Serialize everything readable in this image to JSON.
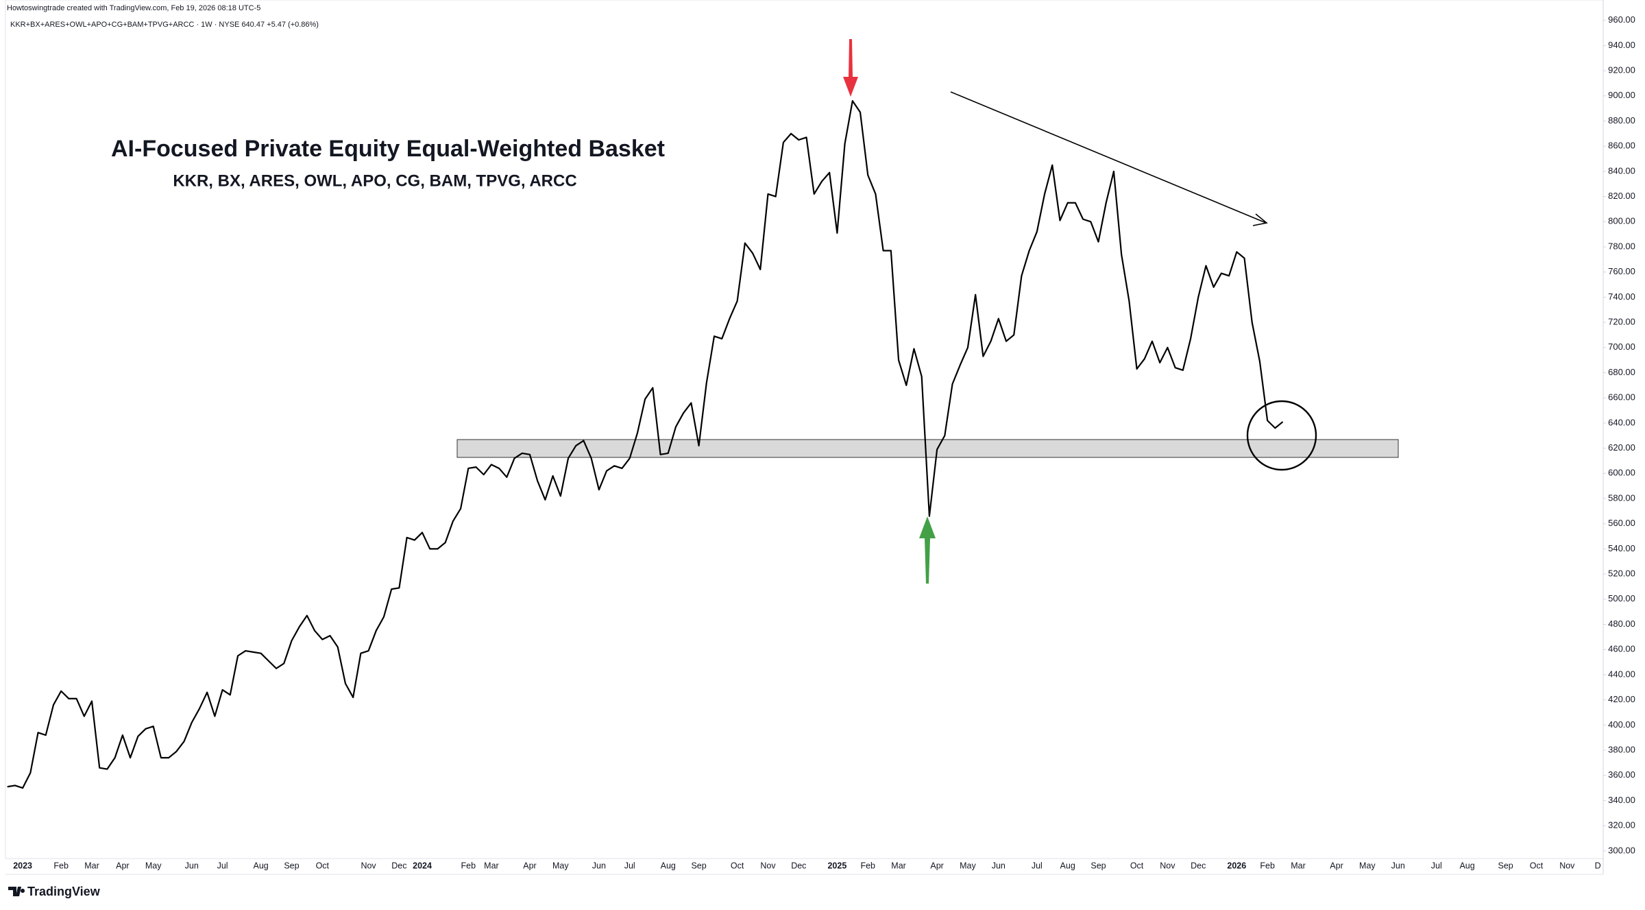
{
  "chart_data": {
    "type": "line",
    "title": "AI-Focused Private Equity Equal-Weighted Basket",
    "subtitle": "KKR, BX, ARES, OWL, APO, CG, BAM, TPVG, ARCC",
    "attribution": "Howtoswingtrade created with TradingView.com, Feb 19, 2026 08:18 UTC-5",
    "symbol_line": "KKR+BX+ARES+OWL+APO+CG+BAM+TPVG+ARCC · 1W · NYSE  640.47  +5.47 (+0.86%)",
    "logo_text": "TradingView",
    "color": "#000000",
    "grid": false,
    "categories": [
      null,
      null,
      "2023",
      null,
      null,
      null,
      null,
      "Feb",
      null,
      null,
      null,
      "Mar",
      null,
      null,
      null,
      "Apr",
      null,
      null,
      null,
      "May",
      null,
      null,
      null,
      null,
      "Jun",
      null,
      null,
      null,
      "Jul",
      null,
      null,
      null,
      null,
      "Aug",
      null,
      null,
      null,
      "Sep",
      null,
      null,
      null,
      "Oct",
      null,
      null,
      null,
      null,
      null,
      "Nov",
      null,
      null,
      null,
      "Dec",
      null,
      null,
      "2024",
      null,
      null,
      null,
      null,
      null,
      "Feb",
      null,
      null,
      "Mar",
      null,
      null,
      null,
      null,
      "Apr",
      null,
      null,
      null,
      "May",
      null,
      null,
      null,
      null,
      "Jun",
      null,
      null,
      null,
      "Jul",
      null,
      null,
      null,
      null,
      "Aug",
      null,
      null,
      null,
      "Sep",
      null,
      null,
      null,
      null,
      "Oct",
      null,
      null,
      null,
      "Nov",
      null,
      null,
      null,
      "Dec",
      null,
      null,
      null,
      null,
      "2025",
      null,
      null,
      null,
      "Feb",
      null,
      null,
      null,
      "Mar",
      null,
      null,
      null,
      null,
      "Apr",
      null,
      null,
      null,
      "May",
      null,
      null,
      null,
      "Jun",
      null,
      null,
      null,
      null,
      "Jul",
      null,
      null,
      null,
      "Aug",
      null,
      null,
      null,
      "Sep",
      null,
      null,
      null,
      null,
      "Oct",
      null,
      null,
      null,
      "Nov",
      null,
      null,
      null,
      "Dec",
      null,
      null,
      null,
      null,
      "2026",
      null,
      null,
      null,
      "Feb",
      null,
      null,
      null,
      "Mar",
      null,
      null,
      null,
      null,
      "Apr",
      null,
      null,
      null,
      "May",
      null,
      null,
      null,
      "Jun",
      null,
      null,
      null,
      null,
      "Jul",
      null,
      null,
      null,
      "Aug",
      null,
      null,
      null,
      null,
      "Sep",
      null,
      null,
      null,
      "Oct",
      null,
      null,
      null,
      "Nov",
      null,
      null,
      null,
      "D"
    ],
    "values": [
      351,
      352,
      350,
      362,
      394,
      392,
      416,
      427,
      421,
      421,
      407,
      419,
      366,
      365,
      374,
      392,
      374,
      391,
      397,
      399,
      374,
      374,
      379,
      387,
      402,
      413,
      426,
      407,
      428,
      424,
      455,
      459,
      458,
      457,
      451,
      445,
      449,
      467,
      478,
      487,
      475,
      468,
      471,
      462,
      433,
      422,
      457,
      459,
      475,
      486,
      508,
      509,
      549,
      547,
      553,
      540,
      540,
      545,
      562,
      572,
      604,
      605,
      599,
      607,
      604,
      597,
      612,
      616,
      615,
      594,
      579,
      598,
      582,
      612,
      622,
      626,
      612,
      587,
      602,
      606,
      604,
      612,
      632,
      659,
      668,
      615,
      616,
      637,
      648,
      656,
      622,
      672,
      709,
      707,
      723,
      737,
      783,
      775,
      762,
      822,
      820,
      863,
      870,
      865,
      867,
      822,
      832,
      839,
      791,
      862,
      896,
      887,
      837,
      822,
      777,
      777,
      690,
      670,
      699,
      677,
      566,
      619,
      630,
      671,
      686,
      700,
      742,
      693,
      705,
      723,
      705,
      710,
      757,
      777,
      792,
      822,
      845,
      801,
      815,
      815,
      802,
      800,
      784,
      815,
      840,
      774,
      737,
      683,
      691,
      705,
      688,
      700,
      684,
      682,
      707,
      740,
      765,
      748,
      759,
      757,
      776,
      771,
      720,
      689,
      642,
      636,
      641,
      null,
      null,
      null,
      null,
      null,
      null,
      null,
      null,
      null,
      null,
      null,
      null,
      null,
      null,
      null,
      null,
      null,
      null,
      null,
      null,
      null,
      null,
      null,
      null,
      null,
      null,
      null,
      null,
      null,
      null,
      null,
      null,
      null,
      null,
      null,
      null,
      null,
      null,
      null,
      null,
      null
    ],
    "ylim": [
      295,
      968
    ],
    "yticks": [
      {
        "value": 960,
        "label": "960.00"
      },
      {
        "value": 940,
        "label": "940.00"
      },
      {
        "value": 920,
        "label": "920.00"
      },
      {
        "value": 900,
        "label": "900.00"
      },
      {
        "value": 880,
        "label": "880.00"
      },
      {
        "value": 860,
        "label": "860.00"
      },
      {
        "value": 840,
        "label": "840.00"
      },
      {
        "value": 820,
        "label": "820.00"
      },
      {
        "value": 800,
        "label": "800.00"
      },
      {
        "value": 780,
        "label": "780.00"
      },
      {
        "value": 760,
        "label": "760.00"
      },
      {
        "value": 740,
        "label": "740.00"
      },
      {
        "value": 720,
        "label": "720.00"
      },
      {
        "value": 700,
        "label": "700.00"
      },
      {
        "value": 680,
        "label": "680.00"
      },
      {
        "value": 660,
        "label": "660.00"
      },
      {
        "value": 640,
        "label": "640.00"
      },
      {
        "value": 620,
        "label": "620.00"
      },
      {
        "value": 600,
        "label": "600.00"
      },
      {
        "value": 580,
        "label": "580.00"
      },
      {
        "value": 560,
        "label": "560.00"
      },
      {
        "value": 540,
        "label": "540.00"
      },
      {
        "value": 520,
        "label": "520.00"
      },
      {
        "value": 500,
        "label": "500.00"
      },
      {
        "value": 480,
        "label": "480.00"
      },
      {
        "value": 460,
        "label": "460.00"
      },
      {
        "value": 440,
        "label": "440.00"
      },
      {
        "value": 420,
        "label": "420.00"
      },
      {
        "value": 400,
        "label": "400.00"
      },
      {
        "value": 380,
        "label": "380.00"
      },
      {
        "value": 360,
        "label": "360.00"
      },
      {
        "value": 340,
        "label": "340.00"
      },
      {
        "value": 320,
        "label": "320.00"
      },
      {
        "value": 300,
        "label": "300.00"
      }
    ]
  }
}
